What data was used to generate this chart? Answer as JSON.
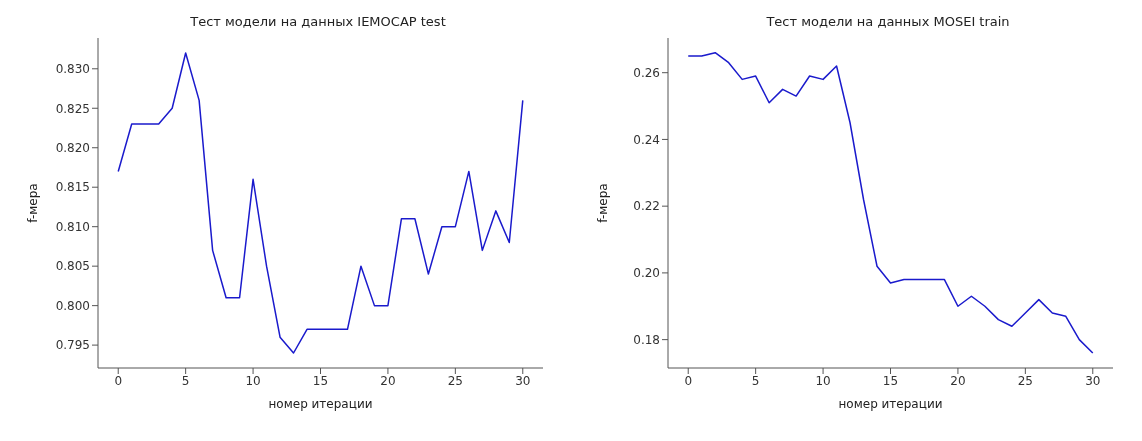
{
  "chart_data": [
    {
      "type": "line",
      "title": "Тест модели на данных IEMOCAP test",
      "xlabel": "номер итерации",
      "ylabel": "f-мера",
      "x": [
        0,
        1,
        2,
        3,
        4,
        5,
        6,
        7,
        8,
        9,
        10,
        11,
        12,
        13,
        14,
        15,
        16,
        17,
        18,
        19,
        20,
        21,
        22,
        23,
        24,
        25,
        26,
        27,
        28,
        29,
        30
      ],
      "series": [
        {
          "color": "#1a1acc",
          "values": [
            0.817,
            0.823,
            0.823,
            0.823,
            0.825,
            0.832,
            0.826,
            0.807,
            0.801,
            0.801,
            0.816,
            0.805,
            0.796,
            0.794,
            0.797,
            0.797,
            0.797,
            0.797,
            0.805,
            0.8,
            0.8,
            0.811,
            0.811,
            0.804,
            0.81,
            0.81,
            0.817,
            0.807,
            0.812,
            0.808,
            0.826
          ]
        }
      ],
      "xlim": [
        -1.5,
        31.5
      ],
      "xticks": [
        0,
        5,
        10,
        15,
        20,
        25,
        30
      ],
      "ylim": [
        0.7921,
        0.8339
      ],
      "yticks": [
        0.795,
        {
          "value": 0.8,
          "label": "0.800"
        },
        0.805,
        {
          "value": 0.81,
          "label": "0.810"
        },
        0.815,
        {
          "value": 0.82,
          "label": "0.820"
        },
        0.825,
        {
          "value": 0.83,
          "label": "0.830"
        }
      ],
      "grid": false,
      "legend": false,
      "marker": "none",
      "line_style": "solid"
    },
    {
      "type": "line",
      "title": "Тест модели на данных MOSEI train",
      "xlabel": "номер итерации",
      "ylabel": "f-мера",
      "x": [
        0,
        1,
        2,
        3,
        4,
        5,
        6,
        7,
        8,
        9,
        10,
        11,
        12,
        13,
        14,
        15,
        16,
        17,
        18,
        19,
        20,
        21,
        22,
        23,
        24,
        25,
        26,
        27,
        28,
        29,
        30
      ],
      "series": [
        {
          "color": "#1a1acc",
          "values": [
            0.265,
            0.265,
            0.266,
            0.263,
            0.258,
            0.259,
            0.251,
            0.255,
            0.253,
            0.259,
            0.258,
            0.262,
            0.245,
            0.222,
            0.202,
            0.197,
            0.198,
            0.198,
            0.198,
            0.198,
            0.19,
            0.193,
            0.19,
            0.186,
            0.184,
            0.188,
            0.192,
            0.188,
            0.187,
            0.18,
            0.176
          ]
        }
      ],
      "xlim": [
        -1.5,
        31.5
      ],
      "xticks": [
        0,
        5,
        10,
        15,
        20,
        25,
        30
      ],
      "ylim": [
        0.1715,
        0.2704
      ],
      "yticks": [
        0.18,
        {
          "value": 0.2,
          "label": "0.20"
        },
        0.22,
        0.24,
        0.26
      ],
      "grid": false,
      "legend": false,
      "marker": "none",
      "line_style": "solid"
    }
  ]
}
